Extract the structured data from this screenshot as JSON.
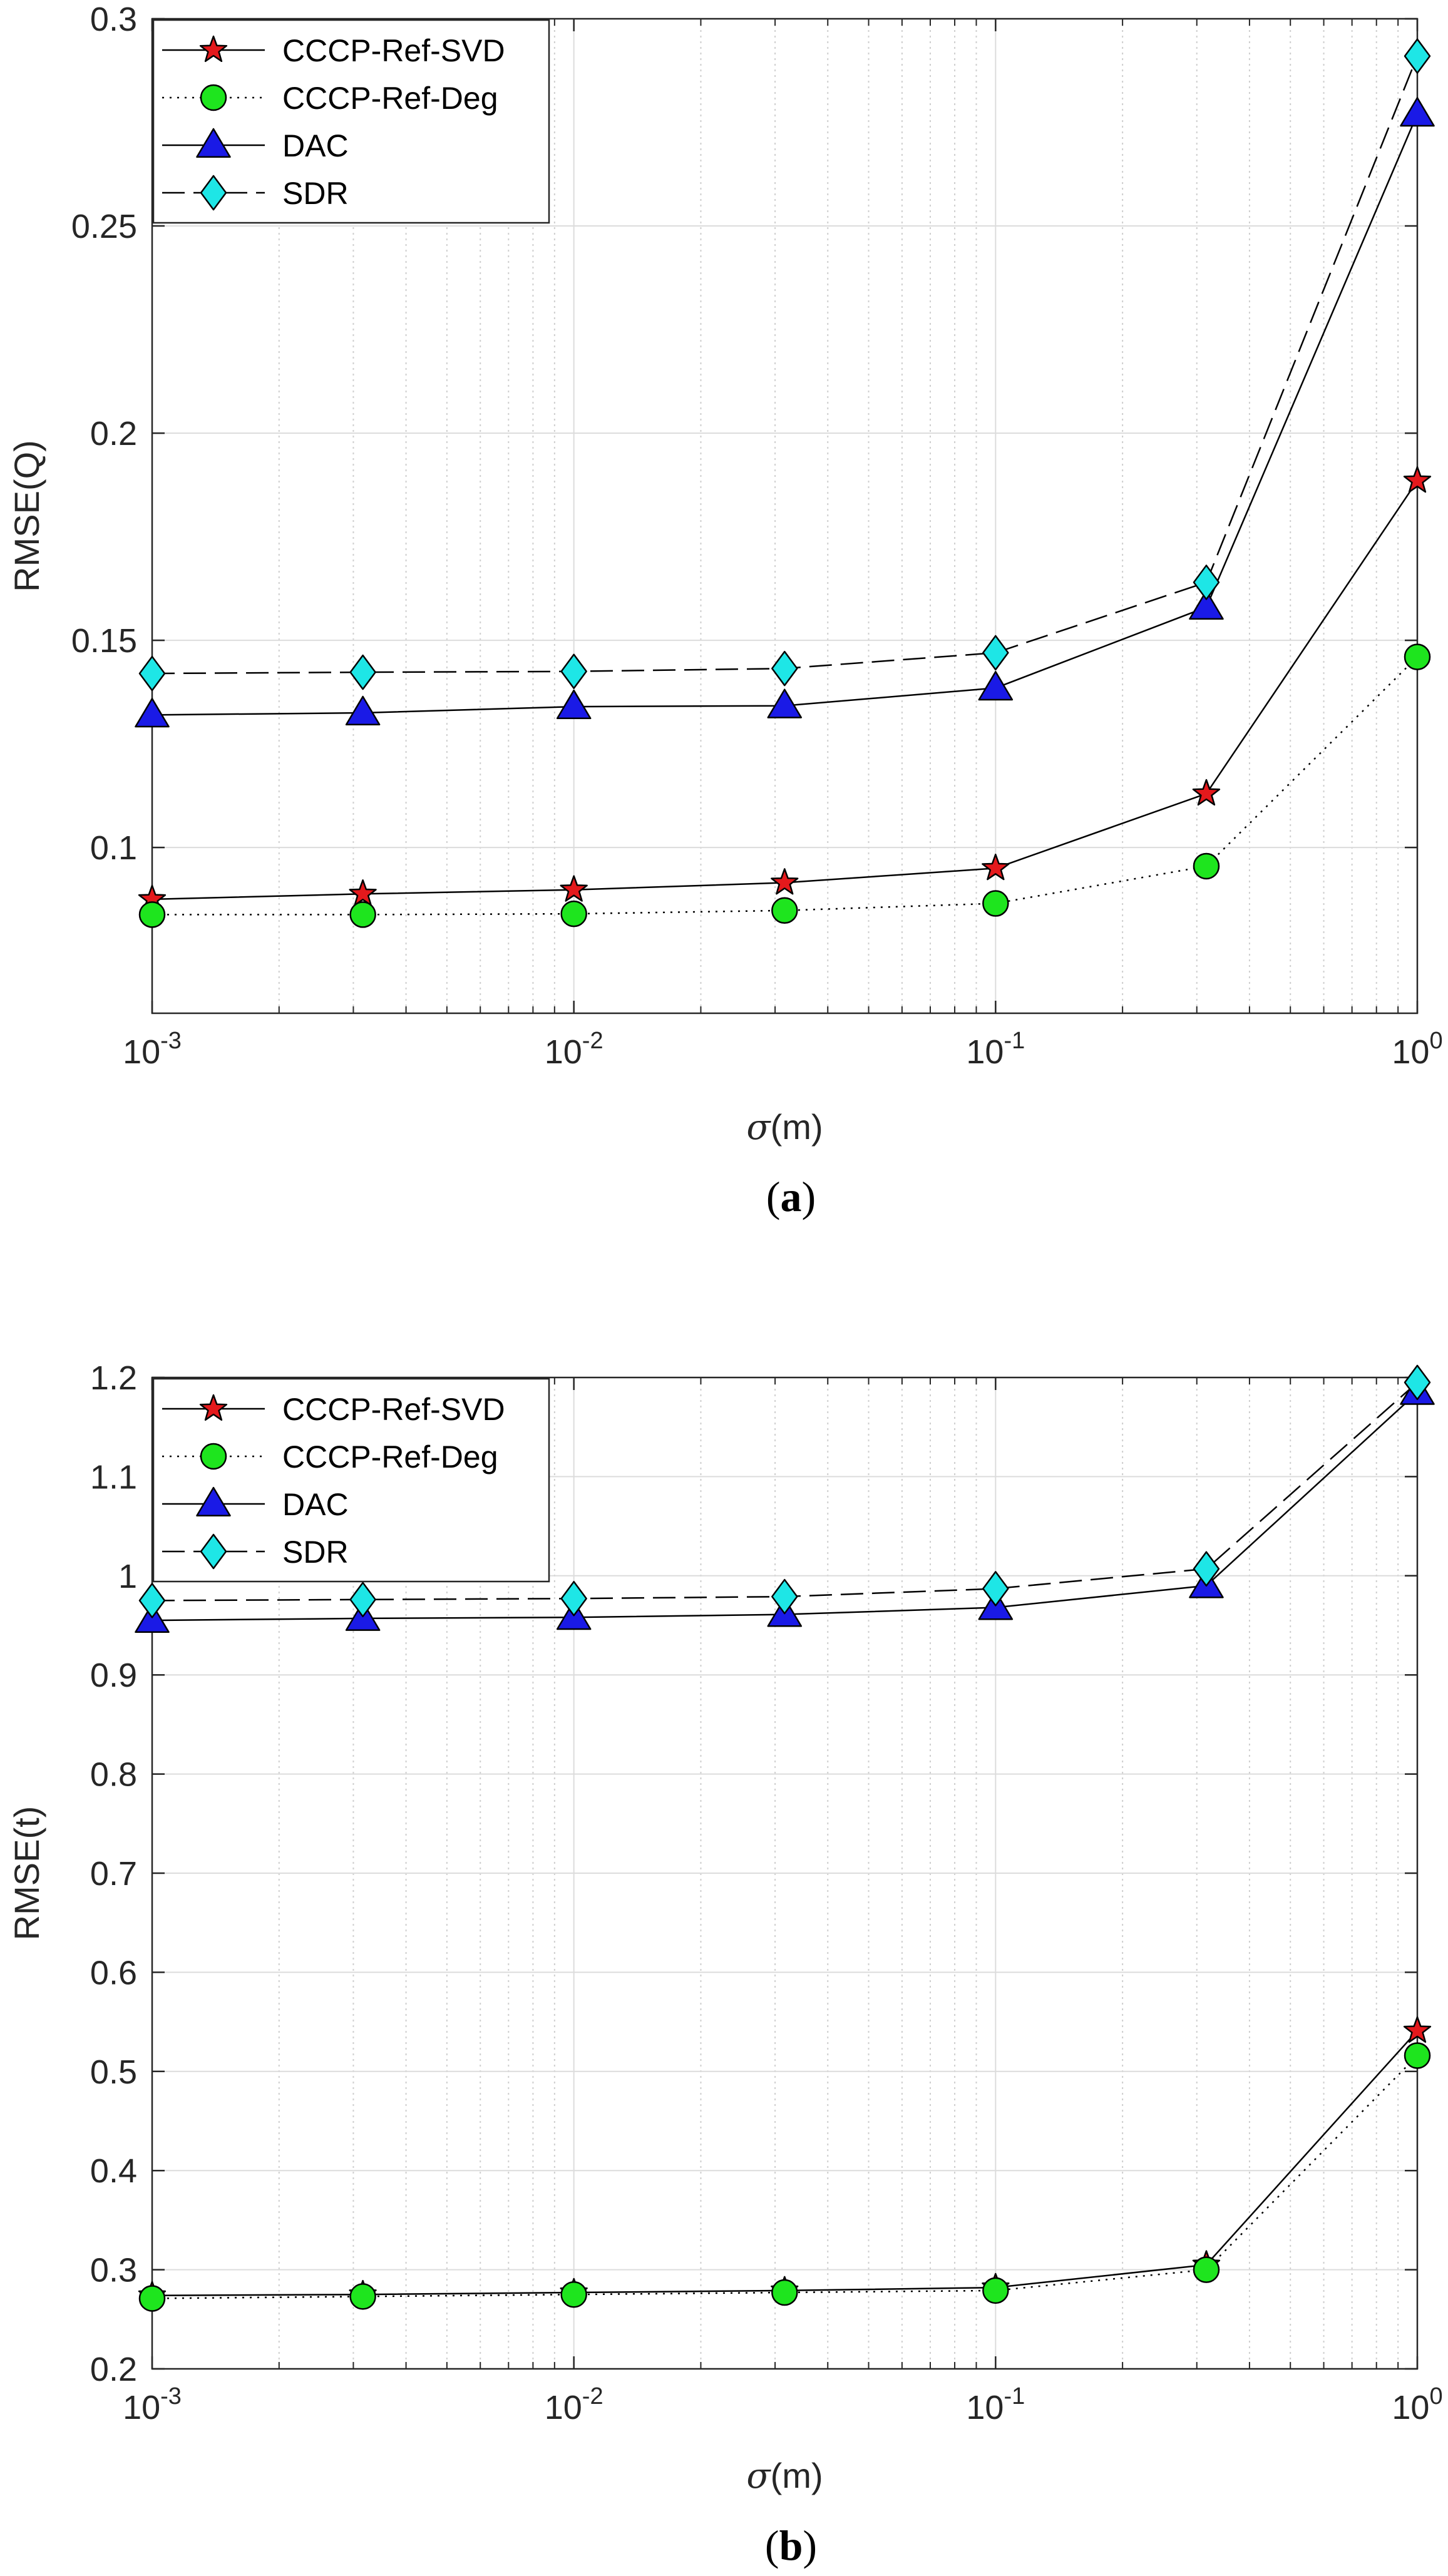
{
  "styles": {
    "CCCP-Ref-SVD": {
      "color": "#000000",
      "dash": "none",
      "marker": "star",
      "fill": "#e4191c"
    },
    "CCCP-Ref-Deg": {
      "color": "#000000",
      "dash": "3,9",
      "marker": "circle",
      "fill": "#1ee51e"
    },
    "DAC": {
      "color": "#000000",
      "dash": "none",
      "marker": "triangle",
      "fill": "#1a1ae6"
    },
    "SDR": {
      "color": "#000000",
      "dash": "36,14",
      "marker": "diamond",
      "fill": "#1ee6e6"
    }
  },
  "chart_data": [
    {
      "id": "a",
      "type": "line",
      "caption_letter": "a",
      "xlabel_symbol": "σ",
      "xlabel_unit": "(m)",
      "ylabel": "RMSE(Q)",
      "xscale": "log",
      "xlim": [
        0.001,
        1
      ],
      "ylim": [
        0.06,
        0.3
      ],
      "x_ticks": [
        0.001,
        0.01,
        0.1,
        1
      ],
      "x_tick_labels": [
        {
          "base": "10",
          "exp": "-3"
        },
        {
          "base": "10",
          "exp": "-2"
        },
        {
          "base": "10",
          "exp": "-1"
        },
        {
          "base": "10",
          "exp": "0"
        }
      ],
      "y_ticks": [
        0.1,
        0.15,
        0.2,
        0.25,
        0.3
      ],
      "y_tick_labels": [
        "0.1",
        "0.15",
        "0.2",
        "0.25",
        "0.3"
      ],
      "grid": true,
      "legend_position": "top-left",
      "x": [
        0.001,
        0.00316,
        0.01,
        0.0316,
        0.1,
        0.316,
        1
      ],
      "series": [
        {
          "name": "CCCP-Ref-SVD",
          "values": [
            0.0875,
            0.0888,
            0.0898,
            0.0915,
            0.095,
            0.113,
            0.1885
          ]
        },
        {
          "name": "CCCP-Ref-Deg",
          "values": [
            0.0838,
            0.0838,
            0.084,
            0.0848,
            0.0865,
            0.0955,
            0.146
          ]
        },
        {
          "name": "DAC",
          "values": [
            0.132,
            0.1325,
            0.134,
            0.1342,
            0.1385,
            0.158,
            0.277
          ]
        },
        {
          "name": "SDR",
          "values": [
            0.142,
            0.1423,
            0.1425,
            0.1432,
            0.147,
            0.164,
            0.291
          ]
        }
      ]
    },
    {
      "id": "b",
      "type": "line",
      "caption_letter": "b",
      "xlabel_symbol": "σ",
      "xlabel_unit": "(m)",
      "ylabel": "RMSE(t)",
      "xscale": "log",
      "xlim": [
        0.001,
        1
      ],
      "ylim": [
        0.2,
        1.2
      ],
      "x_ticks": [
        0.001,
        0.01,
        0.1,
        1
      ],
      "x_tick_labels": [
        {
          "base": "10",
          "exp": "-3"
        },
        {
          "base": "10",
          "exp": "-2"
        },
        {
          "base": "10",
          "exp": "-1"
        },
        {
          "base": "10",
          "exp": "0"
        }
      ],
      "y_ticks": [
        0.2,
        0.3,
        0.4,
        0.5,
        0.6,
        0.7,
        0.8,
        0.9,
        1,
        1.1,
        1.2
      ],
      "y_tick_labels": [
        "0.2",
        "0.3",
        "0.4",
        "0.5",
        "0.6",
        "0.7",
        "0.8",
        "0.9",
        "1",
        "1.1",
        "1.2"
      ],
      "grid": true,
      "legend_position": "top-left",
      "x": [
        0.001,
        0.00316,
        0.01,
        0.0316,
        0.1,
        0.316,
        1
      ],
      "series": [
        {
          "name": "CCCP-Ref-SVD",
          "values": [
            0.274,
            0.275,
            0.277,
            0.279,
            0.282,
            0.305,
            0.541
          ]
        },
        {
          "name": "CCCP-Ref-Deg",
          "values": [
            0.271,
            0.273,
            0.275,
            0.277,
            0.279,
            0.3,
            0.516
          ]
        },
        {
          "name": "DAC",
          "values": [
            0.955,
            0.957,
            0.958,
            0.961,
            0.968,
            0.99,
            1.185
          ]
        },
        {
          "name": "SDR",
          "values": [
            0.975,
            0.976,
            0.977,
            0.979,
            0.987,
            1.007,
            1.195
          ]
        }
      ]
    }
  ]
}
